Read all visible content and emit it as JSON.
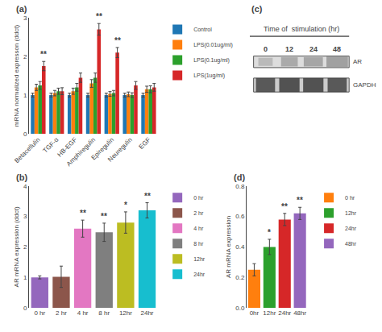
{
  "chart_data": [
    {
      "type": "bar",
      "annotations": [
        {
          "text": "(a)"
        },
        {
          "text": "**",
          "category": "Betacellulin",
          "series": "LPS(1ug/ml)"
        },
        {
          "text": "**",
          "category": "Amphiregulin",
          "series": "LPS(1ug/ml)"
        },
        {
          "text": "**",
          "category": "Epiregulin",
          "series": "LPS(1ug/ml)"
        }
      ],
      "categories": [
        "Betacellulin",
        "TGF-α",
        "HB-EGF",
        "Amphiregulin",
        "Epiregulin",
        "Neuregulin",
        "EGF"
      ],
      "series": [
        {
          "name": "Control",
          "values": [
            1.0,
            1.0,
            1.0,
            1.0,
            1.0,
            1.0,
            1.0
          ],
          "errors": [
            0.05,
            0.05,
            0.05,
            0.05,
            0.05,
            0.05,
            0.05
          ]
        },
        {
          "name": "LPS(0.01ug/ml)",
          "values": [
            1.2,
            1.05,
            1.1,
            1.3,
            1.03,
            1.02,
            1.15
          ],
          "errors": [
            0.08,
            0.07,
            0.08,
            0.1,
            0.06,
            0.06,
            0.08
          ]
        },
        {
          "name": "LPS(0.1ug/ml)",
          "values": [
            1.25,
            1.1,
            1.2,
            1.45,
            1.05,
            1.0,
            1.15
          ],
          "errors": [
            0.1,
            0.08,
            0.1,
            0.12,
            0.07,
            0.06,
            0.09
          ]
        },
        {
          "name": "LPS(1ug/ml)",
          "values": [
            1.75,
            1.1,
            1.45,
            2.7,
            2.1,
            1.25,
            1.2
          ],
          "errors": [
            0.12,
            0.09,
            0.12,
            0.15,
            0.13,
            0.1,
            0.1
          ]
        }
      ],
      "ylabel": "mRNA normalized expresson (ddct)",
      "ylim": [
        0,
        3
      ],
      "yticks": [
        0,
        1,
        2,
        3
      ],
      "grid": false,
      "legend": "right"
    },
    {
      "type": "bar",
      "annotations": [
        {
          "text": "(b)"
        },
        {
          "text": "**",
          "category": "4 hr"
        },
        {
          "text": "**",
          "category": "8 hr"
        },
        {
          "text": "*",
          "category": "12hr"
        },
        {
          "text": "**",
          "category": "24hr"
        }
      ],
      "categories": [
        "0 hr",
        "2 hr",
        "4 hr",
        "8 hr",
        "12hr",
        "24hr"
      ],
      "values": [
        1.0,
        1.02,
        2.6,
        2.48,
        2.8,
        3.2
      ],
      "errors": [
        0.05,
        0.35,
        0.28,
        0.3,
        0.35,
        0.25
      ],
      "ylabel": "AR mRNA expression (ddct)",
      "ylim": [
        0,
        4
      ],
      "yticks": [
        0,
        1,
        2,
        3,
        4
      ],
      "grid": false,
      "legend": "right"
    },
    {
      "type": "blot",
      "title": "Time of  stimulation (hr)",
      "annotations": [
        {
          "text": "(c)"
        }
      ],
      "categories": [
        "0",
        "12",
        "24",
        "48"
      ],
      "series": [
        {
          "name": "AR"
        },
        {
          "name": "GAPDH"
        }
      ]
    },
    {
      "type": "bar",
      "annotations": [
        {
          "text": "(d)"
        },
        {
          "text": "*",
          "category": "12hr"
        },
        {
          "text": "**",
          "category": "24hr"
        },
        {
          "text": "**",
          "category": "48hr"
        }
      ],
      "categories": [
        "0hr",
        "12hr",
        "24hr",
        "48hr"
      ],
      "series": [
        {
          "name": "0 hr",
          "values": [
            0.25,
            null,
            null,
            null
          ],
          "errors": [
            0.04,
            null,
            null,
            null
          ]
        },
        {
          "name": "12hr",
          "values": [
            null,
            0.4,
            null,
            null
          ],
          "errors": [
            null,
            0.05,
            null,
            null
          ]
        },
        {
          "name": "24hr",
          "values": [
            null,
            null,
            0.58,
            null
          ],
          "errors": [
            null,
            null,
            0.04,
            null
          ]
        },
        {
          "name": "48hr",
          "values": [
            null,
            null,
            null,
            0.62
          ],
          "errors": [
            null,
            null,
            null,
            0.04
          ]
        }
      ],
      "ylabel": "AR mRNA expression",
      "ylim": [
        0,
        0.8
      ],
      "yticks": [
        {
          "value": 0,
          "label": "0.0"
        },
        0.2,
        0.4,
        0.6,
        0.8
      ],
      "grid": false,
      "legend": "right"
    }
  ]
}
